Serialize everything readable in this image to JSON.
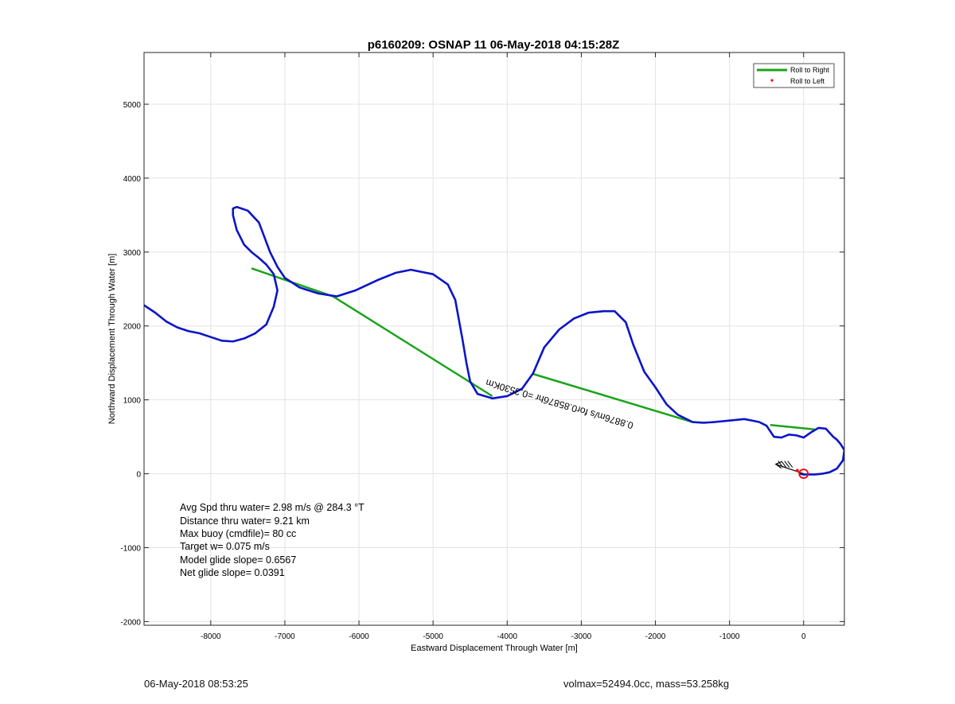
{
  "chart_data": {
    "type": "line",
    "title": "p6160209: OSNAP 11 06-May-2018 04:15:28Z",
    "xlabel": "Eastward Displacement Through Water [m]",
    "ylabel": "Northward Displacement Through Water [m]",
    "xlim": [
      -8900,
      550
    ],
    "ylim": [
      -2050,
      5700
    ],
    "xticks": [
      -8000,
      -7000,
      -6000,
      -5000,
      -4000,
      -3000,
      -2000,
      -1000,
      0
    ],
    "yticks": [
      -2000,
      -1000,
      0,
      1000,
      2000,
      3000,
      4000,
      5000
    ],
    "grid": true,
    "legend": {
      "position": "top-right",
      "entries": [
        {
          "label": "Roll to Right",
          "color": "#1aa31a",
          "style": "line"
        },
        {
          "label": "Roll to Left",
          "color": "#ff0000",
          "style": "dot"
        }
      ]
    },
    "track": {
      "color": "#0b14c8",
      "x": [
        -8900,
        -8750,
        -8600,
        -8450,
        -8300,
        -8150,
        -8000,
        -7850,
        -7700,
        -7550,
        -7400,
        -7250,
        -7150,
        -7100,
        -7150,
        -7250,
        -7350,
        -7450,
        -7550,
        -7650,
        -7700,
        -7700,
        -7650,
        -7500,
        -7350,
        -7200,
        -7100,
        -7000,
        -6800,
        -6550,
        -6300,
        -6050,
        -5750,
        -5500,
        -5300,
        -5000,
        -4800,
        -4700,
        -4600,
        -4550,
        -4500,
        -4400,
        -4200,
        -4000,
        -3800,
        -3650,
        -3500,
        -3300,
        -3100,
        -2900,
        -2700,
        -2550,
        -2400,
        -2300,
        -2150,
        -2000,
        -1850,
        -1700,
        -1500,
        -1350,
        -1200,
        -1000,
        -800,
        -700,
        -600,
        -500,
        -400,
        -300,
        -200,
        -100,
        0,
        100,
        200,
        300,
        400,
        450,
        500,
        550,
        530,
        450,
        350,
        250,
        150,
        50,
        0,
        -50
      ],
      "y": [
        2280,
        2180,
        2060,
        1980,
        1930,
        1900,
        1850,
        1800,
        1790,
        1830,
        1900,
        2020,
        2260,
        2480,
        2700,
        2830,
        2920,
        3000,
        3100,
        3300,
        3500,
        3590,
        3610,
        3560,
        3400,
        3000,
        2800,
        2650,
        2520,
        2440,
        2400,
        2480,
        2620,
        2720,
        2760,
        2700,
        2560,
        2350,
        1800,
        1500,
        1250,
        1080,
        1020,
        1050,
        1150,
        1360,
        1710,
        1950,
        2100,
        2180,
        2200,
        2200,
        2050,
        1750,
        1380,
        1170,
        940,
        800,
        700,
        690,
        700,
        720,
        740,
        720,
        700,
        650,
        500,
        490,
        530,
        520,
        490,
        560,
        620,
        610,
        500,
        460,
        400,
        320,
        180,
        70,
        20,
        0,
        -10,
        -10,
        -10,
        0
      ]
    },
    "roll_right_segments": [
      [
        [
          -7450,
          2780
        ],
        [
          -6350,
          2400
        ],
        [
          -4200,
          1050
        ]
      ],
      [
        [
          -3650,
          1350
        ],
        [
          -1500,
          700
        ]
      ],
      [
        [
          -450,
          660
        ],
        [
          150,
          600
        ]
      ]
    ],
    "annotation": {
      "text": "0.8876m/s for0.8587бhr =0.3530Km",
      "x": -2290,
      "y": 690,
      "rotation_deg": 196.5
    },
    "end_marker": {
      "x": 0,
      "y": 0,
      "label": "O"
    },
    "stats": [
      "Avg Spd thru water=  2.98 m/s @ 284.3 °T",
      "Distance thru water=  9.21 km",
      "Max buoy (cmdfile)= 80 cc",
      "Target w= 0.075 m/s",
      "Model glide slope= 0.6567",
      "Net glide slope= 0.0391"
    ]
  },
  "footer": {
    "left": "06-May-2018 08:53:25",
    "right": "volmax=52494.0cc, mass=53.258kg"
  }
}
